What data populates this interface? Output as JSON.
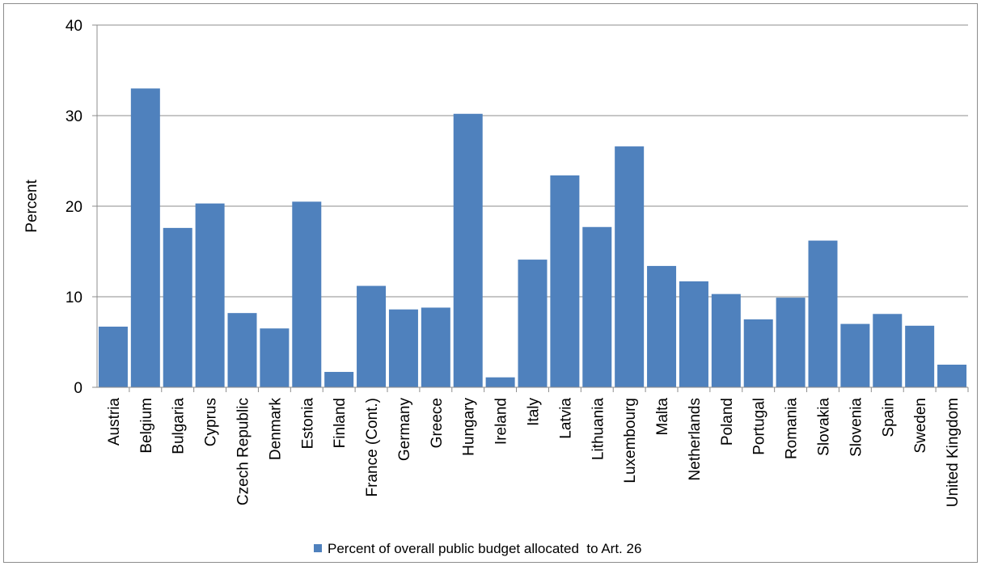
{
  "chart_data": {
    "type": "bar",
    "ylabel": "Percent",
    "ylim": [
      0,
      40
    ],
    "yticks": [
      "0",
      "10",
      "20",
      "30",
      "40"
    ],
    "grid": true,
    "legend_position": "bottom",
    "series_color": "#4f81bd",
    "categories": [
      "Austria",
      "Belgium",
      "Bulgaria",
      "Cyprus",
      "Czech Republic",
      "Denmark",
      "Estonia",
      "Finland",
      "France (Cont.)",
      "Germany",
      "Greece",
      "Hungary",
      "Ireland",
      "Italy",
      "Latvia",
      "Lithuania",
      "Luxembourg",
      "Malta",
      "Netherlands",
      "Poland",
      "Portugal",
      "Romania",
      "Slovakia",
      "Slovenia",
      "Spain",
      "Sweden",
      "United Kingdom"
    ],
    "series": [
      {
        "name": "Percent of overall public budget allocated  to Art. 26",
        "values": [
          6.7,
          33.0,
          17.6,
          20.3,
          8.2,
          6.5,
          20.5,
          1.7,
          11.2,
          8.6,
          8.8,
          30.2,
          1.1,
          14.1,
          23.4,
          17.7,
          26.6,
          13.4,
          11.7,
          10.3,
          7.5,
          9.9,
          16.2,
          7.0,
          8.1,
          6.8,
          2.5
        ]
      }
    ]
  }
}
